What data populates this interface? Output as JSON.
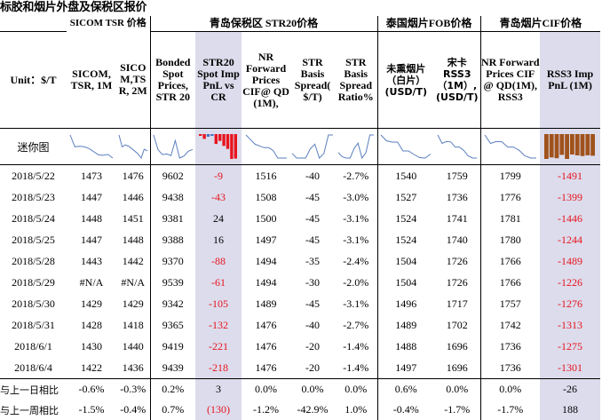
{
  "title": "标胶和烟片外盘及保税区报价",
  "groups": {
    "sicom": "SICOM TSR 价格",
    "qingdao": "青岛保税区 STR20价格",
    "thai": "泰国烟片FOB价格",
    "cif": "青岛烟片CIF价格"
  },
  "columns": {
    "unit": "Unit：$/T",
    "c1": "SICOM, TSR, 1M",
    "c2": "SICOM,TSR, 2M",
    "c3": "Bonded Spot Prices, STR 20",
    "c4": "STR20 Spot Imp PnL vs CR",
    "c5": "NR Forward Prices CIF@ QD (1M),",
    "c6": "STR Basis Spread( $/T)",
    "c7": "STR Basis Spread Ratio%",
    "c8": "未熏烟片（白片）(USD/T)",
    "c9": "宋卡 RSS3 （1M）,(USD/T)",
    "c10": "NR Forward Prices CIF @ QD(1M), RSS3",
    "c11": "RSS3 Imp PnL (1M)"
  },
  "sparkline_label": "迷你图",
  "rows": [
    {
      "date": "2018/5/22",
      "c1": "1473",
      "c2": "1476",
      "c3": "9602",
      "c4": "-9",
      "c5": "1516",
      "c6": "-40",
      "c7": "-2.7%",
      "c8": "1540",
      "c9": "1759",
      "c10": "1799",
      "c11": "-1491"
    },
    {
      "date": "2018/5/23",
      "c1": "1447",
      "c2": "1446",
      "c3": "9438",
      "c4": "-43",
      "c5": "1508",
      "c6": "-45",
      "c7": "-3.0%",
      "c8": "1527",
      "c9": "1736",
      "c10": "1776",
      "c11": "-1399"
    },
    {
      "date": "2018/5/24",
      "c1": "1448",
      "c2": "1451",
      "c3": "9381",
      "c4": "24",
      "c5": "1500",
      "c6": "-45",
      "c7": "-3.1%",
      "c8": "1524",
      "c9": "1741",
      "c10": "1781",
      "c11": "-1446"
    },
    {
      "date": "2018/5/25",
      "c1": "1447",
      "c2": "1448",
      "c3": "9388",
      "c4": "16",
      "c5": "1497",
      "c6": "-45",
      "c7": "-3.1%",
      "c8": "1524",
      "c9": "1740",
      "c10": "1780",
      "c11": "-1244"
    },
    {
      "date": "2018/5/28",
      "c1": "1443",
      "c2": "1442",
      "c3": "9370",
      "c4": "-88",
      "c5": "1494",
      "c6": "-35",
      "c7": "-2.4%",
      "c8": "1504",
      "c9": "1726",
      "c10": "1766",
      "c11": "-1489"
    },
    {
      "date": "2018/5/29",
      "c1": "#N/A",
      "c2": "#N/A",
      "c3": "9539",
      "c4": "-61",
      "c5": "1494",
      "c6": "-30",
      "c7": "-2.0%",
      "c8": "1504",
      "c9": "1726",
      "c10": "1766",
      "c11": "-1226"
    },
    {
      "date": "2018/5/30",
      "c1": "1429",
      "c2": "1429",
      "c3": "9342",
      "c4": "-105",
      "c5": "1489",
      "c6": "-45",
      "c7": "-3.1%",
      "c8": "1496",
      "c9": "1717",
      "c10": "1757",
      "c11": "-1276"
    },
    {
      "date": "2018/5/31",
      "c1": "1428",
      "c2": "1418",
      "c3": "9365",
      "c4": "-132",
      "c5": "1476",
      "c6": "-40",
      "c7": "-2.7%",
      "c8": "1489",
      "c9": "1702",
      "c10": "1742",
      "c11": "-1313"
    },
    {
      "date": "2018/6/1",
      "c1": "1430",
      "c2": "1440",
      "c3": "9419",
      "c4": "-221",
      "c5": "1476",
      "c6": "-20",
      "c7": "-1.4%",
      "c8": "1488",
      "c9": "1696",
      "c10": "1736",
      "c11": "-1275"
    },
    {
      "date": "2018/6/4",
      "c1": "1422",
      "c2": "1436",
      "c3": "9439",
      "c4": "-218",
      "c5": "1476",
      "c6": "-20",
      "c7": "-1.4%",
      "c8": "1497",
      "c9": "1696",
      "c10": "1736",
      "c11": "-1301"
    }
  ],
  "footer": [
    {
      "label": "与上一日相比",
      "c1": "-0.6%",
      "c2": "-0.3%",
      "c3": "0.2%",
      "c4": "3",
      "c5": "0.0%",
      "c6": "0.0%",
      "c7": "0.0%",
      "c8": "0.6%",
      "c9": "0.0%",
      "c10": "0.0%",
      "c11": "-26"
    },
    {
      "label": "与上一周相比",
      "c1": "-1.5%",
      "c2": "-0.4%",
      "c3": "0.7%",
      "c4": "(130)",
      "c5": "-1.2%",
      "c6": "-42.9%",
      "c7": "1.0%",
      "c8": "-0.4%",
      "c9": "-1.7%",
      "c10": "-1.7%",
      "c11": "188"
    }
  ],
  "colors": {
    "negative": "#e8141e",
    "highlight_bg": "#dcdcec",
    "sparkline_line": "#5b7fbf",
    "bar_brown": "#a0521c",
    "bar_blue": "#4472c4"
  }
}
